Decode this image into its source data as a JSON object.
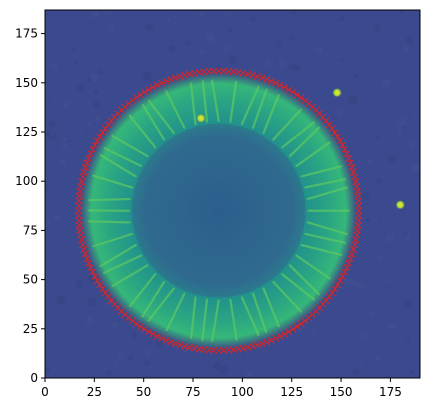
{
  "chart_data": {
    "type": "heatmap",
    "title": "",
    "xlabel": "",
    "ylabel": "",
    "xlim": [
      0,
      190
    ],
    "ylim": [
      0,
      187
    ],
    "x_ticks": [
      0,
      25,
      50,
      75,
      100,
      125,
      150,
      175
    ],
    "y_ticks": [
      0,
      25,
      50,
      75,
      100,
      125,
      150,
      175
    ],
    "grid": false,
    "image": {
      "colormap": "viridis",
      "background_color": "#3b4a8f",
      "description": "ring structure centered near (88, 85)",
      "ring_center": [
        88,
        85
      ],
      "inner_disk_radius": 44,
      "ring_outer_radius": 70,
      "spokes": 48,
      "bright_spots": [
        {
          "x": 180,
          "y": 88
        },
        {
          "x": 79,
          "y": 132
        },
        {
          "x": 148,
          "y": 145
        }
      ]
    },
    "overlay_series": {
      "marker": "x",
      "color": "#d62728",
      "center": [
        88,
        85
      ],
      "radius_x": 71,
      "radius_y": 71,
      "point_count": 180
    }
  }
}
